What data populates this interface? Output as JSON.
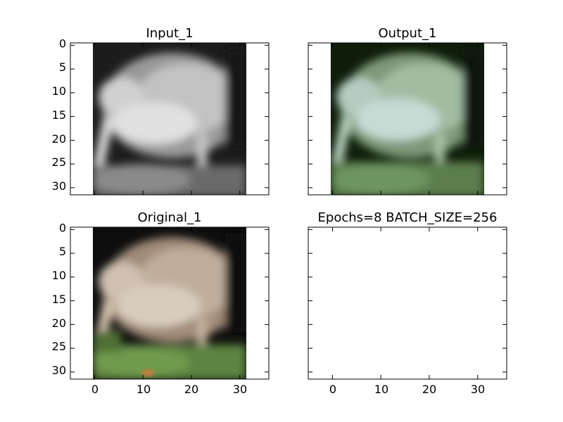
{
  "figure": {
    "panels": [
      {
        "key": "input",
        "title": "Input_1",
        "image": "grayscale kiwi bird photo",
        "xticks": [],
        "yticks": [
          "0",
          "5",
          "10",
          "15",
          "20",
          "25",
          "30"
        ]
      },
      {
        "key": "output",
        "title": "Output_1",
        "image": "green-tinted colorized kiwi bird photo",
        "xticks": [],
        "yticks": []
      },
      {
        "key": "original",
        "title": "Original_1",
        "image": "color kiwi bird photo",
        "xticks": [
          "0",
          "10",
          "20",
          "30"
        ],
        "yticks": [
          "0",
          "5",
          "10",
          "15",
          "20",
          "25",
          "30"
        ]
      },
      {
        "key": "info",
        "title": "Epochs=8 BATCH_SIZE=256",
        "image": "",
        "xticks": [
          "0",
          "10",
          "20",
          "30"
        ],
        "yticks": []
      }
    ],
    "axis": {
      "xlim": [
        -5,
        36
      ],
      "ylim": [
        31.5,
        -0.5
      ],
      "image_extent": [
        -0.5,
        31.5
      ],
      "xtick_values": [
        0,
        10,
        20,
        30
      ],
      "ytick_values": [
        0,
        5,
        10,
        15,
        20,
        25,
        30
      ]
    },
    "colors": {
      "input_tones": [
        "#1c1c1c",
        "#9a9a9a",
        "#c8c8c8",
        "#e2e2e2",
        "#6a6a6a"
      ],
      "output_tones": [
        "#0f1e0b",
        "#7e9879",
        "#a9c4ad",
        "#c4dcd4",
        "#5b7e4d"
      ],
      "original_tones": [
        "#0e0e0e",
        "#a08b78",
        "#c7b6a3",
        "#d8cdbd",
        "#5d8442"
      ]
    }
  }
}
